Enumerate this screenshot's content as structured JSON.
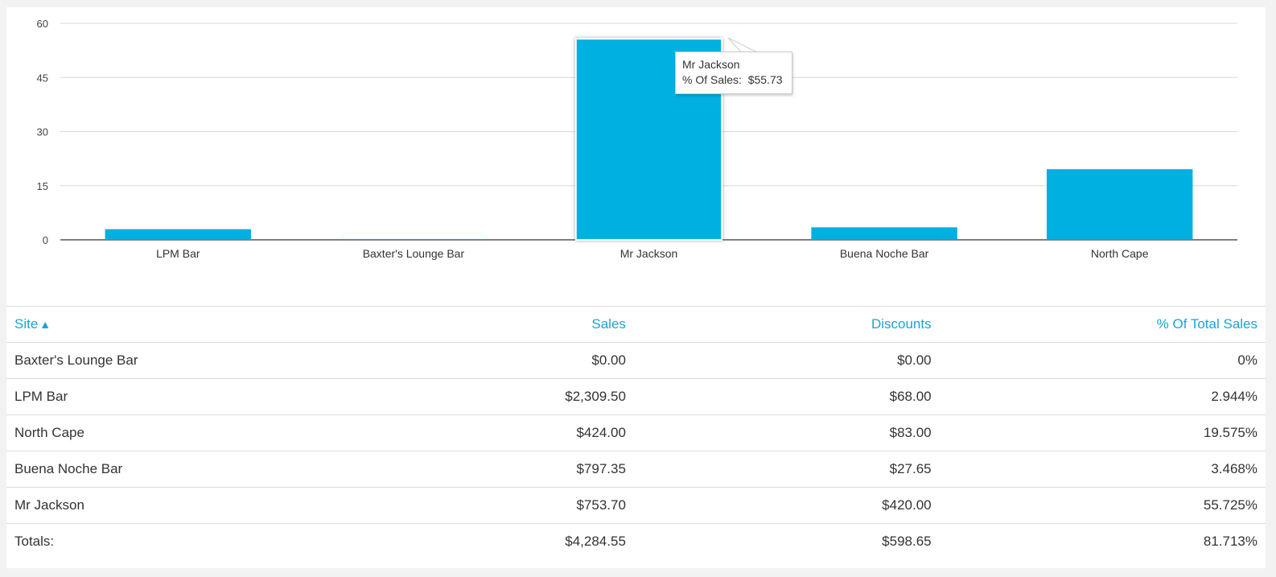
{
  "colors": {
    "bar": "#00b0e0",
    "accent": "#1aa3d6",
    "grid": "#d8d8d8",
    "axis": "#555555"
  },
  "chart_data": {
    "type": "bar",
    "categories": [
      "LPM Bar",
      "Baxter's Lounge Bar",
      "Mr Jackson",
      "Buena Noche Bar",
      "North Cape"
    ],
    "values": [
      2.944,
      0,
      55.725,
      3.468,
      19.575
    ],
    "yticks": [
      "0",
      "15",
      "30",
      "45",
      "60"
    ],
    "ylim": [
      0,
      60
    ],
    "grid": true,
    "title": "",
    "xlabel": "",
    "ylabel": ""
  },
  "tooltip": {
    "title": "Mr Jackson",
    "label": "% Of Sales:",
    "value": "$55.73"
  },
  "table": {
    "headers": {
      "site": "Site",
      "sort_indicator": "▲",
      "sales": "Sales",
      "discounts": "Discounts",
      "pct": "% Of Total Sales"
    },
    "rows": [
      {
        "site": "Baxter's Lounge Bar",
        "sales": "$0.00",
        "discounts": "$0.00",
        "pct": "0%"
      },
      {
        "site": "LPM Bar",
        "sales": "$2,309.50",
        "discounts": "$68.00",
        "pct": "2.944%"
      },
      {
        "site": "North Cape",
        "sales": "$424.00",
        "discounts": "$83.00",
        "pct": "19.575%"
      },
      {
        "site": "Buena Noche Bar",
        "sales": "$797.35",
        "discounts": "$27.65",
        "pct": "3.468%"
      },
      {
        "site": "Mr Jackson",
        "sales": "$753.70",
        "discounts": "$420.00",
        "pct": "55.725%"
      }
    ],
    "totals": {
      "label": "Totals:",
      "sales": "$4,284.55",
      "discounts": "$598.65",
      "pct": "81.713%"
    }
  }
}
